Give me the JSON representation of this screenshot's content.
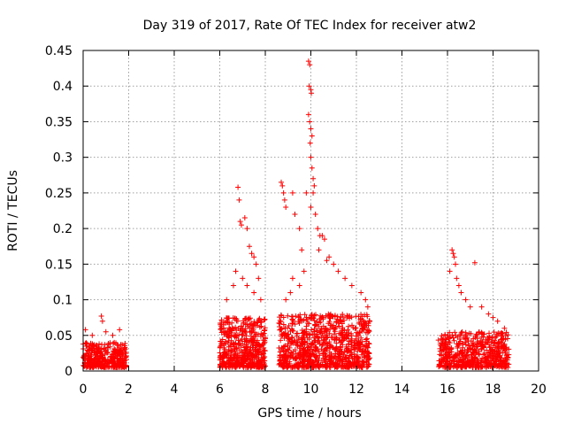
{
  "chart_data": {
    "type": "scatter",
    "title": "Day 319 of 2017, Rate Of TEC Index for receiver atw2",
    "xlabel": "GPS time / hours",
    "ylabel": "ROTI / TECUs",
    "xlim": [
      0,
      20
    ],
    "ylim": [
      0,
      0.45
    ],
    "xticks": [
      "0",
      "2",
      "4",
      "6",
      "8",
      "10",
      "12",
      "14",
      "16",
      "18",
      "20"
    ],
    "yticks": [
      "0",
      "0.05",
      "0.1",
      "0.15",
      "0.2",
      "0.25",
      "0.3",
      "0.35",
      "0.4",
      "0.45"
    ],
    "grid": true,
    "marker": "+",
    "color": "#ff0000",
    "clusters": [
      {
        "x_range": [
          0,
          1.9
        ],
        "y_base": [
          0.005,
          0.04
        ],
        "n": 360
      },
      {
        "x_range": [
          6.0,
          8.0
        ],
        "y_base": [
          0.005,
          0.075
        ],
        "n": 520
      },
      {
        "x_range": [
          8.6,
          12.6
        ],
        "y_base": [
          0.005,
          0.08
        ],
        "n": 900
      },
      {
        "x_range": [
          15.6,
          18.7
        ],
        "y_base": [
          0.005,
          0.055
        ],
        "n": 560
      }
    ],
    "points": [
      [
        0.1,
        0.058
      ],
      [
        0.4,
        0.05
      ],
      [
        0.8,
        0.077
      ],
      [
        0.85,
        0.07
      ],
      [
        1.0,
        0.055
      ],
      [
        1.3,
        0.05
      ],
      [
        1.6,
        0.058
      ],
      [
        6.8,
        0.258
      ],
      [
        6.85,
        0.24
      ],
      [
        6.9,
        0.21
      ],
      [
        6.95,
        0.205
      ],
      [
        7.1,
        0.215
      ],
      [
        7.2,
        0.2
      ],
      [
        7.3,
        0.175
      ],
      [
        7.4,
        0.165
      ],
      [
        7.5,
        0.16
      ],
      [
        7.6,
        0.15
      ],
      [
        7.7,
        0.13
      ],
      [
        6.6,
        0.12
      ],
      [
        6.7,
        0.14
      ],
      [
        7.0,
        0.13
      ],
      [
        7.2,
        0.12
      ],
      [
        7.5,
        0.11
      ],
      [
        7.8,
        0.1
      ],
      [
        6.3,
        0.1
      ],
      [
        8.7,
        0.265
      ],
      [
        8.75,
        0.26
      ],
      [
        8.8,
        0.25
      ],
      [
        8.85,
        0.24
      ],
      [
        8.9,
        0.23
      ],
      [
        9.2,
        0.25
      ],
      [
        9.3,
        0.22
      ],
      [
        9.5,
        0.2
      ],
      [
        9.6,
        0.17
      ],
      [
        9.8,
        0.25
      ],
      [
        9.9,
        0.435
      ],
      [
        9.95,
        0.43
      ],
      [
        9.93,
        0.4
      ],
      [
        10.0,
        0.395
      ],
      [
        10.02,
        0.39
      ],
      [
        9.9,
        0.36
      ],
      [
        9.95,
        0.35
      ],
      [
        10.0,
        0.34
      ],
      [
        10.05,
        0.33
      ],
      [
        9.97,
        0.32
      ],
      [
        10.0,
        0.3
      ],
      [
        10.05,
        0.285
      ],
      [
        10.1,
        0.27
      ],
      [
        10.15,
        0.26
      ],
      [
        10.1,
        0.25
      ],
      [
        10.0,
        0.23
      ],
      [
        10.2,
        0.22
      ],
      [
        10.3,
        0.2
      ],
      [
        10.4,
        0.19
      ],
      [
        10.5,
        0.19
      ],
      [
        10.6,
        0.185
      ],
      [
        10.35,
        0.17
      ],
      [
        10.7,
        0.155
      ],
      [
        10.8,
        0.16
      ],
      [
        11.0,
        0.15
      ],
      [
        11.2,
        0.14
      ],
      [
        11.5,
        0.13
      ],
      [
        11.8,
        0.12
      ],
      [
        12.2,
        0.11
      ],
      [
        12.4,
        0.1
      ],
      [
        12.5,
        0.09
      ],
      [
        9.2,
        0.13
      ],
      [
        9.5,
        0.12
      ],
      [
        9.1,
        0.11
      ],
      [
        8.9,
        0.1
      ],
      [
        9.7,
        0.14
      ],
      [
        16.2,
        0.17
      ],
      [
        16.25,
        0.165
      ],
      [
        16.3,
        0.16
      ],
      [
        16.35,
        0.15
      ],
      [
        16.1,
        0.14
      ],
      [
        16.4,
        0.13
      ],
      [
        16.5,
        0.12
      ],
      [
        16.6,
        0.11
      ],
      [
        16.8,
        0.1
      ],
      [
        17.0,
        0.09
      ],
      [
        17.2,
        0.152
      ],
      [
        17.5,
        0.09
      ],
      [
        17.8,
        0.08
      ],
      [
        18.0,
        0.075
      ],
      [
        18.2,
        0.07
      ],
      [
        18.5,
        0.06
      ]
    ]
  }
}
